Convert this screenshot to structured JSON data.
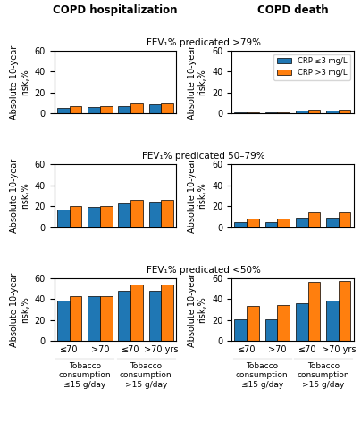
{
  "column_titles": [
    "COPD hospitalization",
    "COPD death"
  ],
  "row_titles": [
    "FEV₁% predicated >79%",
    "FEV₁% predicated 50–79%",
    "FEV₁% predicated <50%"
  ],
  "chart_data": [
    {
      "type": "bar",
      "categories": [
        "≤70",
        ">70",
        "≤70",
        ">70 yrs"
      ],
      "series": [
        {
          "name": "CRP ≤3 mg/L",
          "values": [
            5.5,
            6.5,
            7.5,
            8.5
          ]
        },
        {
          "name": "CRP >3 mg/L",
          "values": [
            7.5,
            7.5,
            9.5,
            10.0
          ]
        }
      ],
      "ylabel": "Absolute 10-year\nrisk,%",
      "ylim": [
        0,
        60
      ],
      "yticks": [
        0,
        20,
        40,
        60
      ],
      "tick_labels": "y"
    },
    {
      "type": "bar",
      "categories": [
        "≤70",
        ">70",
        "≤70",
        ">70 yrs"
      ],
      "series": [
        {
          "name": "CRP ≤3 mg/L",
          "values": [
            1.0,
            1.0,
            2.5,
            2.5
          ]
        },
        {
          "name": "CRP >3 mg/L",
          "values": [
            1.5,
            1.5,
            3.5,
            3.5
          ]
        }
      ],
      "ylabel": "Absolute 10-year\nrisk,%",
      "ylim": [
        0,
        60
      ],
      "yticks": [
        0,
        20,
        40,
        60
      ],
      "tick_labels": "y",
      "legend": "upper right"
    },
    {
      "type": "bar",
      "categories": [
        "≤70",
        ">70",
        "≤70",
        ">70 yrs"
      ],
      "series": [
        {
          "name": "CRP ≤3 mg/L",
          "values": [
            17.0,
            19.0,
            22.5,
            24.0
          ]
        },
        {
          "name": "CRP >3 mg/L",
          "values": [
            20.5,
            20.0,
            26.0,
            26.0
          ]
        }
      ],
      "ylabel": "Absolute 10-year\nrisk,%",
      "ylim": [
        0,
        60
      ],
      "yticks": [
        0,
        20,
        40,
        60
      ],
      "tick_labels": "y"
    },
    {
      "type": "bar",
      "categories": [
        "≤70",
        ">70",
        "≤70",
        ">70 yrs"
      ],
      "series": [
        {
          "name": "CRP ≤3 mg/L",
          "values": [
            5.0,
            5.0,
            9.0,
            9.5
          ]
        },
        {
          "name": "CRP >3 mg/L",
          "values": [
            8.0,
            8.0,
            14.0,
            14.5
          ]
        }
      ],
      "ylabel": "Absolute 10-year\nrisk,%",
      "ylim": [
        0,
        60
      ],
      "yticks": [
        0,
        20,
        40,
        60
      ],
      "tick_labels": "y"
    },
    {
      "type": "bar",
      "categories": [
        "≤70",
        ">70",
        "≤70",
        ">70 yrs"
      ],
      "series": [
        {
          "name": "CRP ≤3 mg/L",
          "values": [
            38.0,
            43.0,
            48.0,
            48.0
          ]
        },
        {
          "name": "CRP >3 mg/L",
          "values": [
            43.0,
            43.0,
            54.0,
            54.0
          ]
        }
      ],
      "ylabel": "Absolute 10-year\nrisk,%",
      "ylim": [
        0,
        60
      ],
      "yticks": [
        0,
        20,
        40,
        60
      ],
      "category_groups": [
        {
          "label": "Tobacco\nconsumption\n≤15 g/day",
          "span": 2
        },
        {
          "label": "Tobacco\nconsumption\n>15 g/day",
          "span": 2
        }
      ]
    },
    {
      "type": "bar",
      "categories": [
        "≤70",
        ">70",
        "≤70",
        ">70 yrs"
      ],
      "series": [
        {
          "name": "CRP ≤3 mg/L",
          "values": [
            21.0,
            21.0,
            36.0,
            38.0
          ]
        },
        {
          "name": "CRP >3 mg/L",
          "values": [
            33.0,
            34.0,
            56.0,
            57.0
          ]
        }
      ],
      "ylabel": "Absolute 10-year\nrisk,%",
      "ylim": [
        0,
        60
      ],
      "yticks": [
        0,
        20,
        40,
        60
      ],
      "category_groups": [
        {
          "label": "Tobacco\nconsumption\n≤15 g/day",
          "span": 2
        },
        {
          "label": "Tobacco\nconsumption\n>15 g/day",
          "span": 2
        }
      ]
    }
  ]
}
